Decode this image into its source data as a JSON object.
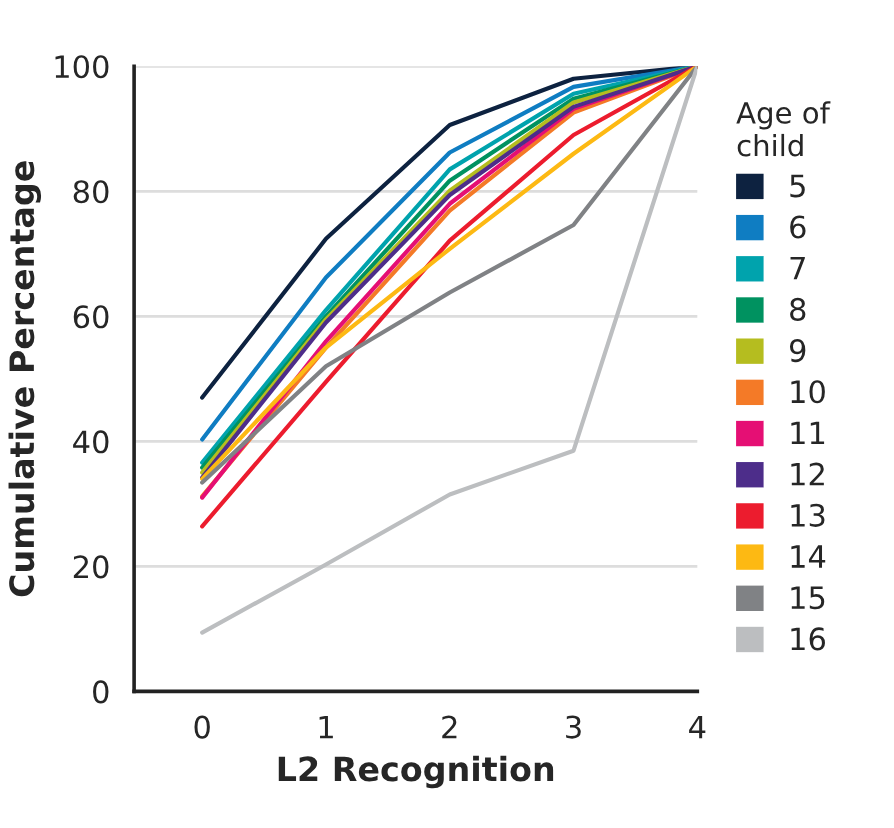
{
  "chart_data": {
    "type": "line",
    "xlabel": "L2 Recognition",
    "ylabel": "Cumulative Percentage",
    "legend_title": "Age of\nchild",
    "x": [
      0,
      1,
      2,
      3,
      4
    ],
    "xlim": [
      -0.55,
      4
    ],
    "xticks": [
      0,
      1,
      2,
      3,
      4
    ],
    "ylim": [
      0,
      100
    ],
    "yticks": [
      0,
      20,
      40,
      60,
      80,
      100
    ],
    "grid": "y",
    "legend": "right",
    "marker": "none",
    "line_style": "solid",
    "series": [
      {
        "name": "5",
        "color": "#0d2240",
        "values": [
          47,
          72.4,
          90.6,
          98,
          100
        ]
      },
      {
        "name": "6",
        "color": "#0f7dc2",
        "values": [
          40.3,
          66.2,
          86.2,
          96.7,
          100
        ]
      },
      {
        "name": "7",
        "color": "#00a3ad",
        "values": [
          36.6,
          61,
          83.5,
          95.6,
          100
        ]
      },
      {
        "name": "8",
        "color": "#009260",
        "values": [
          35.8,
          60,
          81.7,
          94.8,
          100
        ]
      },
      {
        "name": "9",
        "color": "#b5bd1f",
        "values": [
          35,
          59.5,
          80.1,
          94.2,
          100
        ]
      },
      {
        "name": "10",
        "color": "#f47a27",
        "values": [
          31.2,
          55,
          76.9,
          92.6,
          100
        ]
      },
      {
        "name": "11",
        "color": "#e50f74",
        "values": [
          31,
          56,
          78,
          93.2,
          100
        ]
      },
      {
        "name": "12",
        "color": "#4d2d8a",
        "values": [
          34.2,
          59,
          79.4,
          93.5,
          100
        ]
      },
      {
        "name": "13",
        "color": "#ec1c2e",
        "values": [
          26.4,
          49.5,
          72.1,
          89,
          100
        ]
      },
      {
        "name": "14",
        "color": "#fdb913",
        "values": [
          34,
          55,
          70.8,
          86,
          100
        ]
      },
      {
        "name": "15",
        "color": "#808285",
        "values": [
          33.4,
          52,
          63.8,
          74.6,
          100
        ]
      },
      {
        "name": "16",
        "color": "#bcbec0",
        "values": [
          9.4,
          20.3,
          31.5,
          38.5,
          100
        ]
      }
    ]
  }
}
